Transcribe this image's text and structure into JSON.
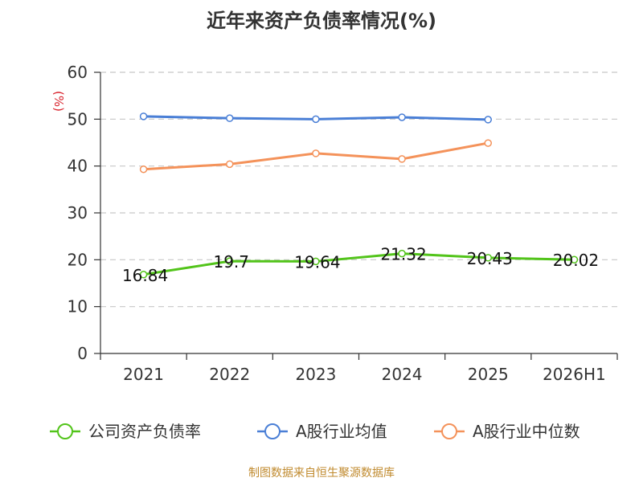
{
  "chart_data": {
    "type": "line",
    "title": "近年来资产负债率情况(%)",
    "ylabel": "(%)",
    "xlabel": "",
    "categories": [
      "2021",
      "2022",
      "2023",
      "2024",
      "2025",
      "2026H1"
    ],
    "ylim": [
      0,
      60
    ],
    "yticks": [
      0,
      10,
      20,
      30,
      40,
      50,
      60
    ],
    "grid": true,
    "legend_position": "bottom",
    "series": [
      {
        "name": "公司资产负债率",
        "color": "#52c41a",
        "values": [
          16.84,
          19.7,
          19.64,
          21.32,
          20.43,
          20.02
        ],
        "labels": [
          "16.84",
          "19.7",
          "19.64",
          "21.32",
          "20.43",
          "20.02"
        ]
      },
      {
        "name": "A股行业均值",
        "color": "#4a7fd6",
        "values": [
          50.6,
          50.2,
          50.0,
          50.4,
          49.9,
          null
        ]
      },
      {
        "name": "A股行业中位数",
        "color": "#f4925a",
        "values": [
          39.3,
          40.4,
          42.7,
          41.5,
          44.9,
          null
        ]
      }
    ]
  },
  "source": "制图数据来自恒生聚源数据库"
}
